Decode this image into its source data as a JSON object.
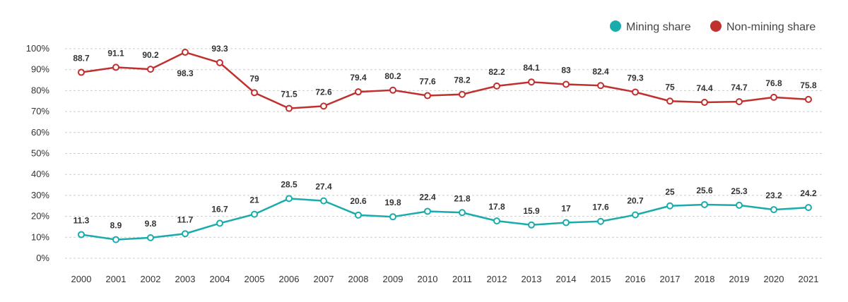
{
  "chart_data": {
    "type": "line",
    "categories": [
      "2000",
      "2001",
      "2002",
      "2003",
      "2004",
      "2005",
      "2006",
      "2007",
      "2008",
      "2009",
      "2010",
      "2011",
      "2012",
      "2013",
      "2014",
      "2015",
      "2016",
      "2017",
      "2018",
      "2019",
      "2020",
      "2021"
    ],
    "series": [
      {
        "name": "Mining share",
        "color": "#1aacac",
        "values": [
          11.3,
          8.9,
          9.8,
          11.7,
          16.7,
          21,
          28.5,
          27.4,
          20.6,
          19.8,
          22.4,
          21.8,
          17.8,
          15.9,
          17,
          17.6,
          20.7,
          25,
          25.6,
          25.3,
          23.2,
          24.2
        ],
        "labels": [
          "11.3",
          "8.9",
          "9.8",
          "11.7",
          "16.7",
          "21",
          "28.5",
          "27.4",
          "20.6",
          "19.8",
          "22.4",
          "21.8",
          "17.8",
          "15.9",
          "17",
          "17.6",
          "20.7",
          "25",
          "25.6",
          "25.3",
          "23.2",
          "24.2"
        ]
      },
      {
        "name": "Non-mining share",
        "color": "#c0302e",
        "values": [
          88.7,
          91.1,
          90.2,
          98.3,
          93.3,
          79,
          71.5,
          72.6,
          79.4,
          80.2,
          77.6,
          78.2,
          82.2,
          84.1,
          83,
          82.4,
          79.3,
          75,
          74.4,
          74.7,
          76.8,
          75.8
        ],
        "labels": [
          "88.7",
          "91.1",
          "90.2",
          "98.3",
          "93.3",
          "79",
          "71.5",
          "72.6",
          "79.4",
          "80.2",
          "77.6",
          "78.2",
          "82.2",
          "84.1",
          "83",
          "82.4",
          "79.3",
          "75",
          "74.4",
          "74.7",
          "76.8",
          "75.8"
        ]
      }
    ],
    "yticks": [
      "0%",
      "10%",
      "20%",
      "30%",
      "40%",
      "50%",
      "60%",
      "70%",
      "80%",
      "90%",
      "100%"
    ],
    "ylim": [
      0,
      100
    ],
    "grid": true,
    "legend_position": "top-right"
  }
}
